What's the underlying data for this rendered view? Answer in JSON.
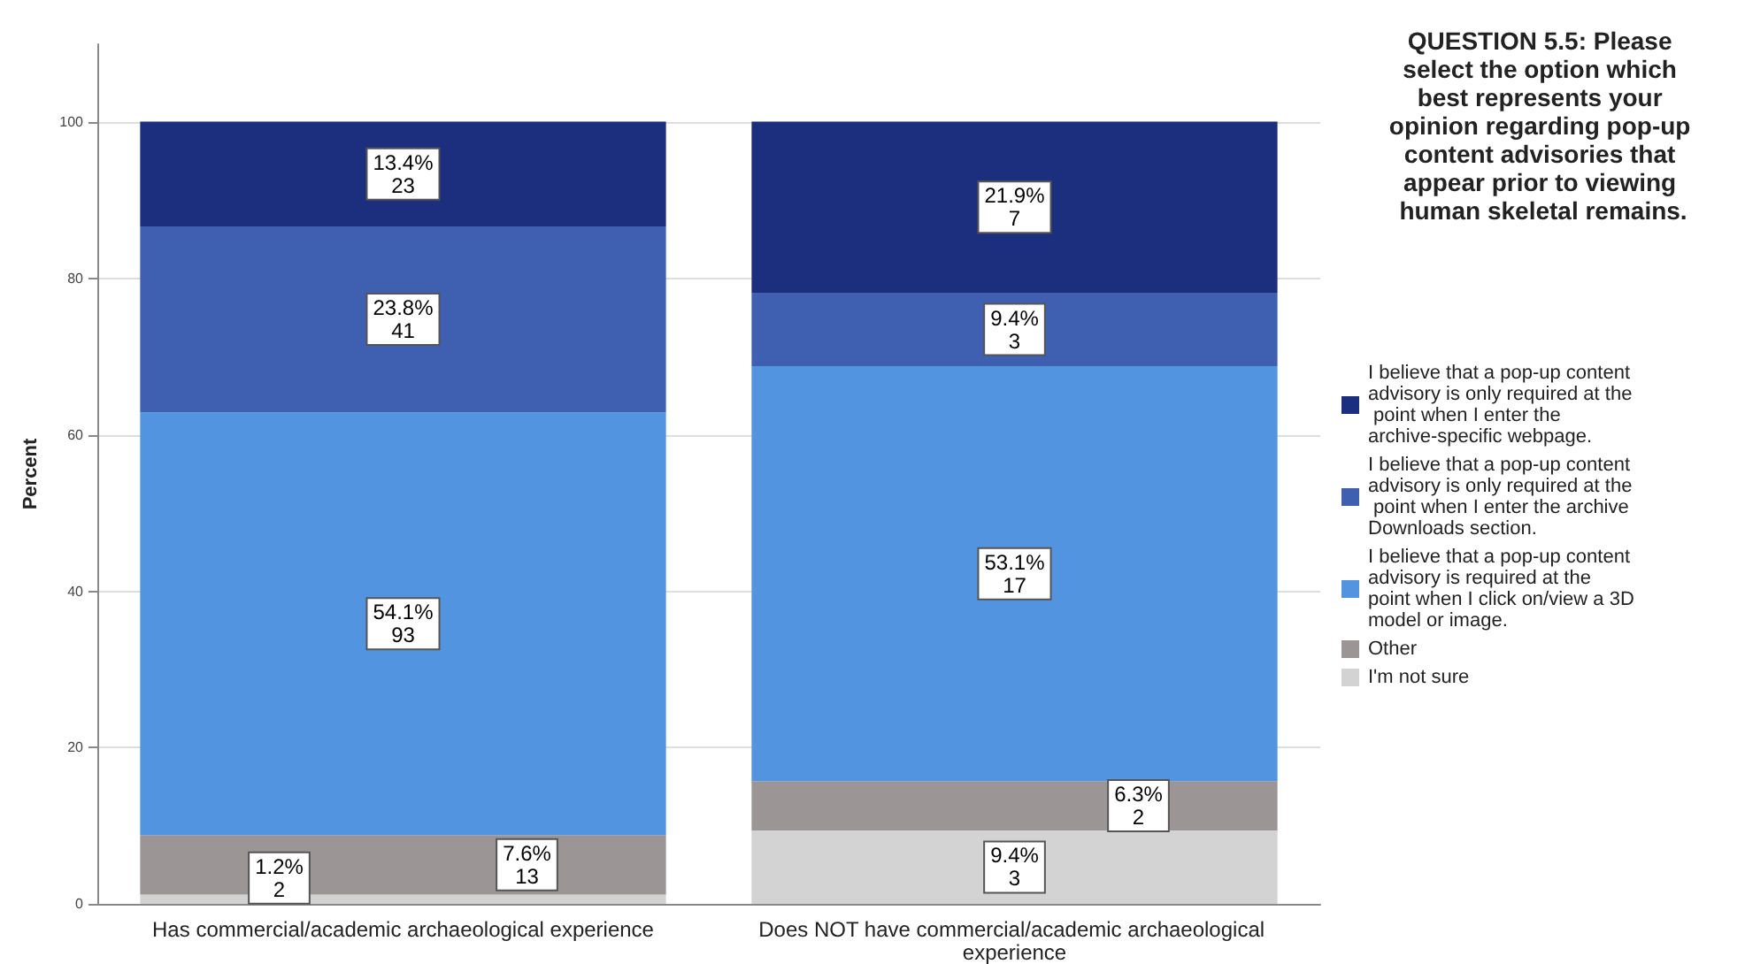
{
  "chart_data": {
    "type": "bar",
    "stacked": true,
    "legend_title": "QUESTION 5.5: Please select the option which best represents your opinion regarding pop-up content advisories that appear prior to viewing human skeletal remains.",
    "ylabel": "Percent",
    "categories": [
      "Has commercial/academic archaeological experience",
      "Does NOT have commercial/academic archaeological experience"
    ],
    "series": [
      {
        "name": "I'm not sure",
        "color": "#d3d3d3",
        "values": [
          1.2,
          9.4
        ],
        "value_labels": [
          "1.2%\n2",
          "9.4%\n3"
        ]
      },
      {
        "name": "Other",
        "color": "#9b9596",
        "values": [
          7.6,
          6.3
        ],
        "value_labels": [
          "7.6%\n13",
          "6.3%\n2"
        ]
      },
      {
        "name": "I believe that a pop-up content advisory is required at the point when I click on/view a 3D model or image.",
        "color": "#5294e0",
        "values": [
          54.1,
          53.1
        ],
        "value_labels": [
          "54.1%\n93",
          "53.1%\n17"
        ]
      },
      {
        "name": "I believe that a pop-up content advisory is only required at the point when I enter the archive Downloads section.",
        "color": "#3f5fb0",
        "values": [
          23.8,
          9.4
        ],
        "value_labels": [
          "23.8%\n41",
          "9.4%\n3"
        ]
      },
      {
        "name": "I believe that a pop-up content advisory is only required at the point when I enter the archive-specific webpage.",
        "color": "#1b2f7e",
        "values": [
          13.4,
          21.9
        ],
        "value_labels": [
          "13.4%\n23",
          "21.9%\n7"
        ]
      }
    ],
    "ylim": [
      0,
      110
    ],
    "yticks": [
      0,
      20,
      40,
      60,
      80,
      100
    ],
    "grid": "y",
    "legend": "right"
  }
}
